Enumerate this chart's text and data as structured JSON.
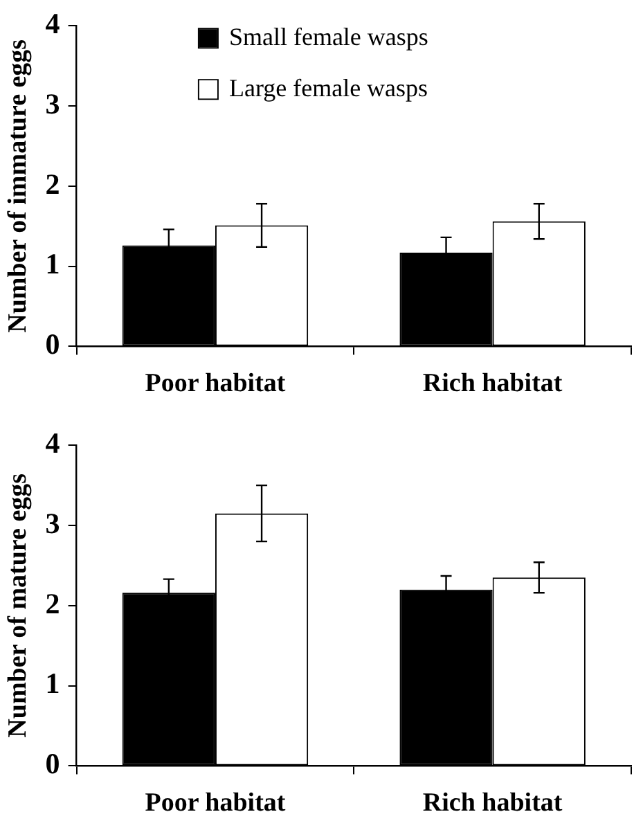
{
  "chart_data": [
    {
      "type": "bar",
      "ylabel": "Number of immature eggs",
      "categories": [
        "Poor habitat",
        "Rich habitat"
      ],
      "ylim": [
        0,
        4
      ],
      "yticks": [
        0,
        1,
        2,
        3,
        4
      ],
      "grid": false,
      "legend": "top",
      "series": [
        {
          "name": "Small female wasps",
          "color": "#000000",
          "values": [
            1.26,
            1.17
          ],
          "errors": [
            0.2,
            0.19
          ]
        },
        {
          "name": "Large female wasps",
          "color": "#ffffff",
          "values": [
            1.51,
            1.56
          ],
          "errors": [
            0.27,
            0.22
          ]
        }
      ]
    },
    {
      "type": "bar",
      "ylabel": "Number of mature eggs",
      "categories": [
        "Poor habitat",
        "Rich habitat"
      ],
      "ylim": [
        0,
        4
      ],
      "yticks": [
        0,
        1,
        2,
        3,
        4
      ],
      "grid": false,
      "legend": false,
      "series": [
        {
          "color": "#000000",
          "values": [
            2.16,
            2.2
          ],
          "errors": [
            0.17,
            0.17
          ]
        },
        {
          "color": "#ffffff",
          "values": [
            3.15,
            2.35
          ],
          "errors": [
            0.35,
            0.19
          ]
        }
      ]
    }
  ]
}
